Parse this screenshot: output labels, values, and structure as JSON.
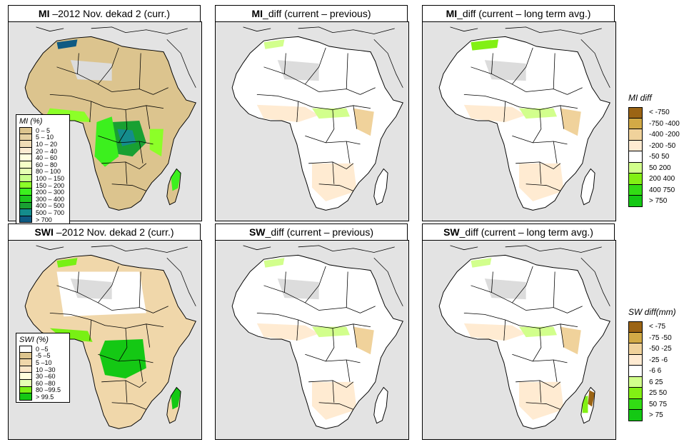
{
  "panels": [
    {
      "title_bold": "MI",
      "title_rest": " –2012 Nov. dekad 2 (curr.)",
      "variable": "MI",
      "kind": "absolute"
    },
    {
      "title_bold": "MI",
      "title_rest": "_diff (current – previous)",
      "variable": "MI",
      "kind": "diff_previous"
    },
    {
      "title_bold": "MI",
      "title_rest": "_diff (current – long term avg.)",
      "variable": "MI",
      "kind": "diff_longterm"
    },
    {
      "title_bold": "SWI",
      "title_rest": " –2012 Nov. dekad 2 (curr.)",
      "variable": "SWI",
      "kind": "absolute"
    },
    {
      "title_bold": "SW",
      "title_rest": "_diff (current – previous)",
      "variable": "SW",
      "kind": "diff_previous"
    },
    {
      "title_bold": "SW",
      "title_rest": "_diff (current – long term avg.)",
      "variable": "SW",
      "kind": "diff_longterm"
    }
  ],
  "legends": {
    "mi_abs": {
      "title": "MI (%)",
      "items": [
        {
          "label": "0 – 5",
          "color": "#dcc48e"
        },
        {
          "label": "5 – 10",
          "color": "#e6d1a2"
        },
        {
          "label": "10 – 20",
          "color": "#f0dcb6"
        },
        {
          "label": "20 – 40",
          "color": "#fbebd2"
        },
        {
          "label": "40 – 60",
          "color": "#ffffe0"
        },
        {
          "label": "60 – 80",
          "color": "#f5ffc8"
        },
        {
          "label": "80 – 100",
          "color": "#e6ffb4"
        },
        {
          "label": "100 – 150",
          "color": "#c8ff8c"
        },
        {
          "label": "150 – 200",
          "color": "#8cff28"
        },
        {
          "label": "200 – 300",
          "color": "#3cf01e"
        },
        {
          "label": "300 – 400",
          "color": "#1ec81e"
        },
        {
          "label": "400 – 500",
          "color": "#19a032"
        },
        {
          "label": "500 – 700",
          "color": "#148c8c"
        },
        {
          "label": "> 700",
          "color": "#0f5a82"
        }
      ]
    },
    "swi_abs": {
      "title": "SWI (%)",
      "items": [
        {
          "label": "0 –5",
          "color": "#ffffff"
        },
        {
          "label": "-5 –5",
          "color": "#dcc48e"
        },
        {
          "label": "5 –10",
          "color": "#f0d7aa"
        },
        {
          "label": "10 –30",
          "color": "#fbe6c8"
        },
        {
          "label": "30 –60",
          "color": "#ffffdc"
        },
        {
          "label": "60 –80",
          "color": "#e6ffb4"
        },
        {
          "label": "80 –99.5",
          "color": "#78f014"
        },
        {
          "label": "> 99.5",
          "color": "#14c814"
        }
      ]
    },
    "mi_diff": {
      "title": "MI diff",
      "items": [
        {
          "label": "< -750",
          "color": "#9b6414"
        },
        {
          "label": "-750 -400",
          "color": "#d2aa46"
        },
        {
          "label": "-400 -200",
          "color": "#f0d29b"
        },
        {
          "label": "-200 -50",
          "color": "#ffebd2"
        },
        {
          "label": "-50 50",
          "color": "#ffffff"
        },
        {
          "label": "50 200",
          "color": "#d2ff8c"
        },
        {
          "label": "200 400",
          "color": "#82f014"
        },
        {
          "label": "400 750",
          "color": "#32dc14"
        },
        {
          "label": "> 750",
          "color": "#14c814"
        }
      ]
    },
    "sw_diff": {
      "title": "SW diff(mm)",
      "items": [
        {
          "label": "< -75",
          "color": "#9b6414"
        },
        {
          "label": "-75 -50",
          "color": "#d2aa46"
        },
        {
          "label": "-50 -25",
          "color": "#f0d29b"
        },
        {
          "label": "-25 -6",
          "color": "#ffebd2"
        },
        {
          "label": "-6 6",
          "color": "#ffffff"
        },
        {
          "label": "6 25",
          "color": "#d2ff8c"
        },
        {
          "label": "25 50",
          "color": "#82f014"
        },
        {
          "label": "50 75",
          "color": "#32dc14"
        },
        {
          "label": "> 75",
          "color": "#14c814"
        }
      ]
    }
  },
  "colors": {
    "ocean": "#e3e3e3",
    "border": "#000000",
    "desert_mask": "#dcdcdc"
  }
}
